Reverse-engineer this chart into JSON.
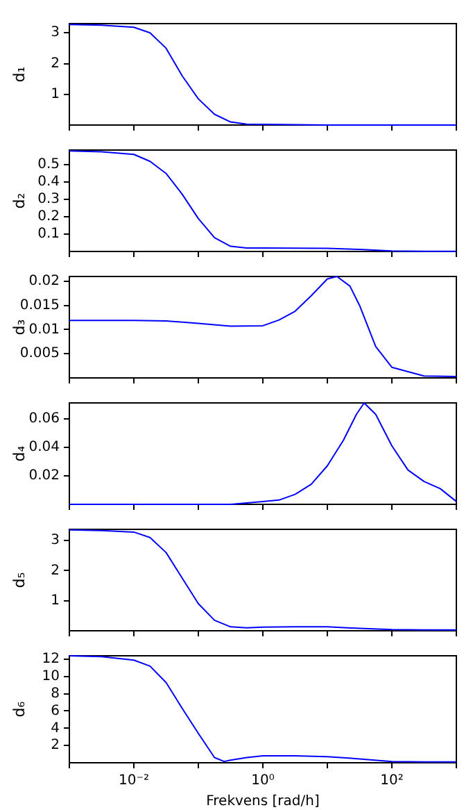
{
  "chart_data": [
    {
      "type": "line",
      "ylabel": "d₁",
      "log": "x",
      "grid": false,
      "legend": false,
      "marker": "none",
      "line_style": "solid",
      "tick_labels": "y",
      "xlim": [
        0.001,
        1000
      ],
      "xticks": [
        {
          "value": 0.001,
          "label": null
        },
        {
          "value": 0.01,
          "label": null
        },
        {
          "value": 0.1,
          "label": null
        },
        {
          "value": 1,
          "label": null
        },
        {
          "value": 10,
          "label": null
        },
        {
          "value": 100,
          "label": null
        },
        {
          "value": 1000,
          "label": null
        }
      ],
      "ylim": [
        0,
        3.3
      ],
      "yticks": [
        1,
        2,
        3
      ],
      "series": [
        {
          "color": "#0000ff",
          "x": [
            0.001,
            0.00316,
            0.01,
            0.0178,
            0.0316,
            0.0562,
            0.1,
            0.178,
            0.316,
            0.562,
            1,
            3.16,
            10,
            31.6,
            100,
            316,
            1000
          ],
          "values": [
            3.27,
            3.25,
            3.18,
            3.0,
            2.5,
            1.6,
            0.85,
            0.35,
            0.1,
            0.03,
            0.02,
            0.01,
            0,
            0,
            0,
            0,
            0
          ]
        }
      ]
    },
    {
      "type": "line",
      "ylabel": "d₂",
      "log": "x",
      "grid": false,
      "legend": false,
      "marker": "none",
      "line_style": "solid",
      "tick_labels": "y",
      "xlim": [
        0.001,
        1000
      ],
      "xticks": [
        {
          "value": 0.001,
          "label": null
        },
        {
          "value": 0.01,
          "label": null
        },
        {
          "value": 0.1,
          "label": null
        },
        {
          "value": 1,
          "label": null
        },
        {
          "value": 10,
          "label": null
        },
        {
          "value": 100,
          "label": null
        },
        {
          "value": 1000,
          "label": null
        }
      ],
      "ylim": [
        0,
        0.585
      ],
      "yticks": [
        0.1,
        0.2,
        0.3,
        0.4,
        0.5
      ],
      "series": [
        {
          "color": "#0000ff",
          "x": [
            0.001,
            0.00316,
            0.01,
            0.0178,
            0.0316,
            0.0562,
            0.1,
            0.178,
            0.316,
            0.562,
            1,
            3.16,
            10,
            31.6,
            100,
            316,
            1000
          ],
          "values": [
            0.58,
            0.575,
            0.56,
            0.52,
            0.45,
            0.33,
            0.19,
            0.08,
            0.03,
            0.02,
            0.02,
            0.019,
            0.018,
            0.012,
            0.003,
            0.001,
            0.001
          ]
        }
      ]
    },
    {
      "type": "line",
      "ylabel": "d₃",
      "log": "x",
      "grid": false,
      "legend": false,
      "marker": "none",
      "line_style": "solid",
      "tick_labels": "y",
      "xlim": [
        0.001,
        1000
      ],
      "xticks": [
        {
          "value": 0.001,
          "label": null
        },
        {
          "value": 0.01,
          "label": null
        },
        {
          "value": 0.1,
          "label": null
        },
        {
          "value": 1,
          "label": null
        },
        {
          "value": 10,
          "label": null
        },
        {
          "value": 100,
          "label": null
        },
        {
          "value": 1000,
          "label": null
        }
      ],
      "ylim": [
        0,
        0.021
      ],
      "yticks": [
        0.005,
        0.01,
        0.015,
        0.02
      ],
      "series": [
        {
          "color": "#0000ff",
          "x": [
            0.001,
            0.00316,
            0.01,
            0.0316,
            0.1,
            0.316,
            1,
            1.78,
            3.16,
            5.62,
            10,
            14.1,
            22.4,
            31.6,
            56.2,
            100,
            316,
            1000
          ],
          "values": [
            0.0119,
            0.0119,
            0.0119,
            0.0118,
            0.0113,
            0.0107,
            0.0108,
            0.012,
            0.0138,
            0.017,
            0.0205,
            0.021,
            0.019,
            0.015,
            0.0065,
            0.0022,
            0.0004,
            0.0003
          ]
        }
      ]
    },
    {
      "type": "line",
      "ylabel": "d₄",
      "log": "x",
      "grid": false,
      "legend": false,
      "marker": "none",
      "line_style": "solid",
      "tick_labels": "y",
      "xlim": [
        0.001,
        1000
      ],
      "xticks": [
        {
          "value": 0.001,
          "label": null
        },
        {
          "value": 0.01,
          "label": null
        },
        {
          "value": 0.1,
          "label": null
        },
        {
          "value": 1,
          "label": null
        },
        {
          "value": 10,
          "label": null
        },
        {
          "value": 100,
          "label": null
        },
        {
          "value": 1000,
          "label": null
        }
      ],
      "ylim": [
        0,
        0.071
      ],
      "yticks": [
        0.02,
        0.04,
        0.06
      ],
      "series": [
        {
          "color": "#0000ff",
          "x": [
            0.001,
            0.01,
            0.1,
            0.316,
            1,
            1.78,
            3.16,
            5.62,
            10,
            17.8,
            28.2,
            37.2,
            56.2,
            100,
            178,
            316,
            562,
            1000
          ],
          "values": [
            0,
            0,
            0,
            0,
            0.002,
            0.003,
            0.007,
            0.014,
            0.027,
            0.045,
            0.063,
            0.071,
            0.063,
            0.041,
            0.024,
            0.016,
            0.011,
            0.002
          ]
        }
      ]
    },
    {
      "type": "line",
      "ylabel": "d₅",
      "log": "x",
      "grid": false,
      "legend": false,
      "marker": "none",
      "line_style": "solid",
      "tick_labels": "y",
      "xlim": [
        0.001,
        1000
      ],
      "xticks": [
        {
          "value": 0.001,
          "label": null
        },
        {
          "value": 0.01,
          "label": null
        },
        {
          "value": 0.1,
          "label": null
        },
        {
          "value": 1,
          "label": null
        },
        {
          "value": 10,
          "label": null
        },
        {
          "value": 100,
          "label": null
        },
        {
          "value": 1000,
          "label": null
        }
      ],
      "ylim": [
        0,
        3.37
      ],
      "yticks": [
        1,
        2,
        3
      ],
      "series": [
        {
          "color": "#0000ff",
          "x": [
            0.001,
            0.00316,
            0.01,
            0.0178,
            0.0316,
            0.0562,
            0.1,
            0.178,
            0.316,
            0.562,
            1,
            3.16,
            10,
            31.6,
            100,
            316,
            1000
          ],
          "values": [
            3.35,
            3.33,
            3.28,
            3.1,
            2.6,
            1.75,
            0.9,
            0.35,
            0.13,
            0.1,
            0.12,
            0.13,
            0.13,
            0.08,
            0.04,
            0.03,
            0.03
          ]
        }
      ]
    },
    {
      "type": "line",
      "ylabel": "d₆",
      "xlabel": "Frekvens [rad/h]",
      "log": "x",
      "grid": false,
      "legend": false,
      "marker": "none",
      "line_style": "solid",
      "xlim": [
        0.001,
        1000
      ],
      "xticks": [
        {
          "value": 0.001,
          "label": null
        },
        {
          "value": 0.01,
          "label": "10⁻²"
        },
        {
          "value": 0.1,
          "label": null
        },
        {
          "value": 1,
          "label": "10⁰"
        },
        {
          "value": 10,
          "label": null
        },
        {
          "value": 100,
          "label": "10²"
        },
        {
          "value": 1000,
          "label": null
        }
      ],
      "ylim": [
        0,
        12.4
      ],
      "yticks": [
        2,
        4,
        6,
        8,
        10,
        12
      ],
      "series": [
        {
          "color": "#0000ff",
          "x": [
            0.001,
            0.00316,
            0.01,
            0.0178,
            0.0316,
            0.0562,
            0.1,
            0.178,
            0.251,
            0.316,
            0.562,
            1,
            3.16,
            10,
            31.6,
            100,
            316,
            1000
          ],
          "values": [
            12.4,
            12.3,
            11.9,
            11.2,
            9.3,
            6.3,
            3.4,
            0.6,
            0.15,
            0.3,
            0.6,
            0.8,
            0.8,
            0.7,
            0.45,
            0.15,
            0.1,
            0.1
          ]
        }
      ]
    }
  ]
}
